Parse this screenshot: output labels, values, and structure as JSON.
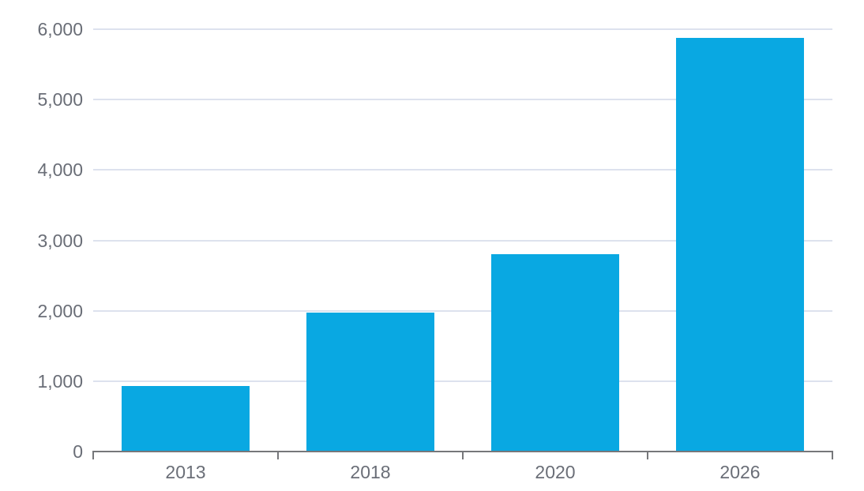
{
  "chart_data": {
    "type": "bar",
    "title": "",
    "xlabel": "",
    "ylabel": "",
    "categories": [
      "2013",
      "2018",
      "2020",
      "2026"
    ],
    "values": [
      930,
      1970,
      2800,
      5880
    ],
    "ylim": [
      0,
      6000
    ],
    "ytick_interval": 1000,
    "ytick_labels": [
      "0",
      "1,000",
      "2,000",
      "3,000",
      "4,000",
      "5,000",
      "6,000"
    ],
    "grid": "horizontal",
    "legend": "none",
    "colors": {
      "bar": "#09A8E2",
      "gridline": "#DDE2EE",
      "axis_line": "#76777A",
      "tick_label": "#6A6E77",
      "background": "#FFFFFF"
    }
  }
}
